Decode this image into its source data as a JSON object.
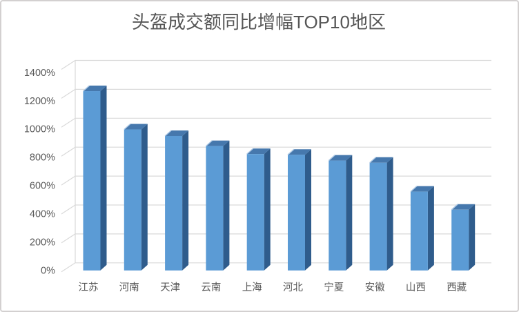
{
  "window": {
    "background": "#FFFFFF",
    "border_color": "#D3D0D0"
  },
  "chart_data": {
    "type": "bar",
    "style": "3d-column",
    "title": "头盔成交额同比增幅TOP10地区",
    "categories": [
      "江苏",
      "河南",
      "天津",
      "云南",
      "上海",
      "河北",
      "宁夏",
      "安徽",
      "山西",
      "西藏"
    ],
    "values": [
      1240,
      975,
      930,
      860,
      805,
      800,
      760,
      745,
      545,
      420
    ],
    "value_suffix": "%",
    "xlabel": "",
    "ylabel": "",
    "ylim": [
      0,
      1400
    ],
    "ytick_interval": 200,
    "ytick_labels_bottom_to_top": [
      "0%",
      "200%",
      "400%",
      "600%",
      "800%",
      "1000%",
      "1200%",
      "1400%"
    ],
    "grid": true,
    "legend": false,
    "colors": {
      "bar_front": "#5B9BD5",
      "bar_side": "#2F5C8C",
      "bar_top": "#4678AD",
      "bar_top_highlight": "#AEC9E5",
      "gridline": "#D9D9D9",
      "axis_text": "#595959",
      "title_text": "#565656",
      "background": "#FFFFFF"
    }
  }
}
